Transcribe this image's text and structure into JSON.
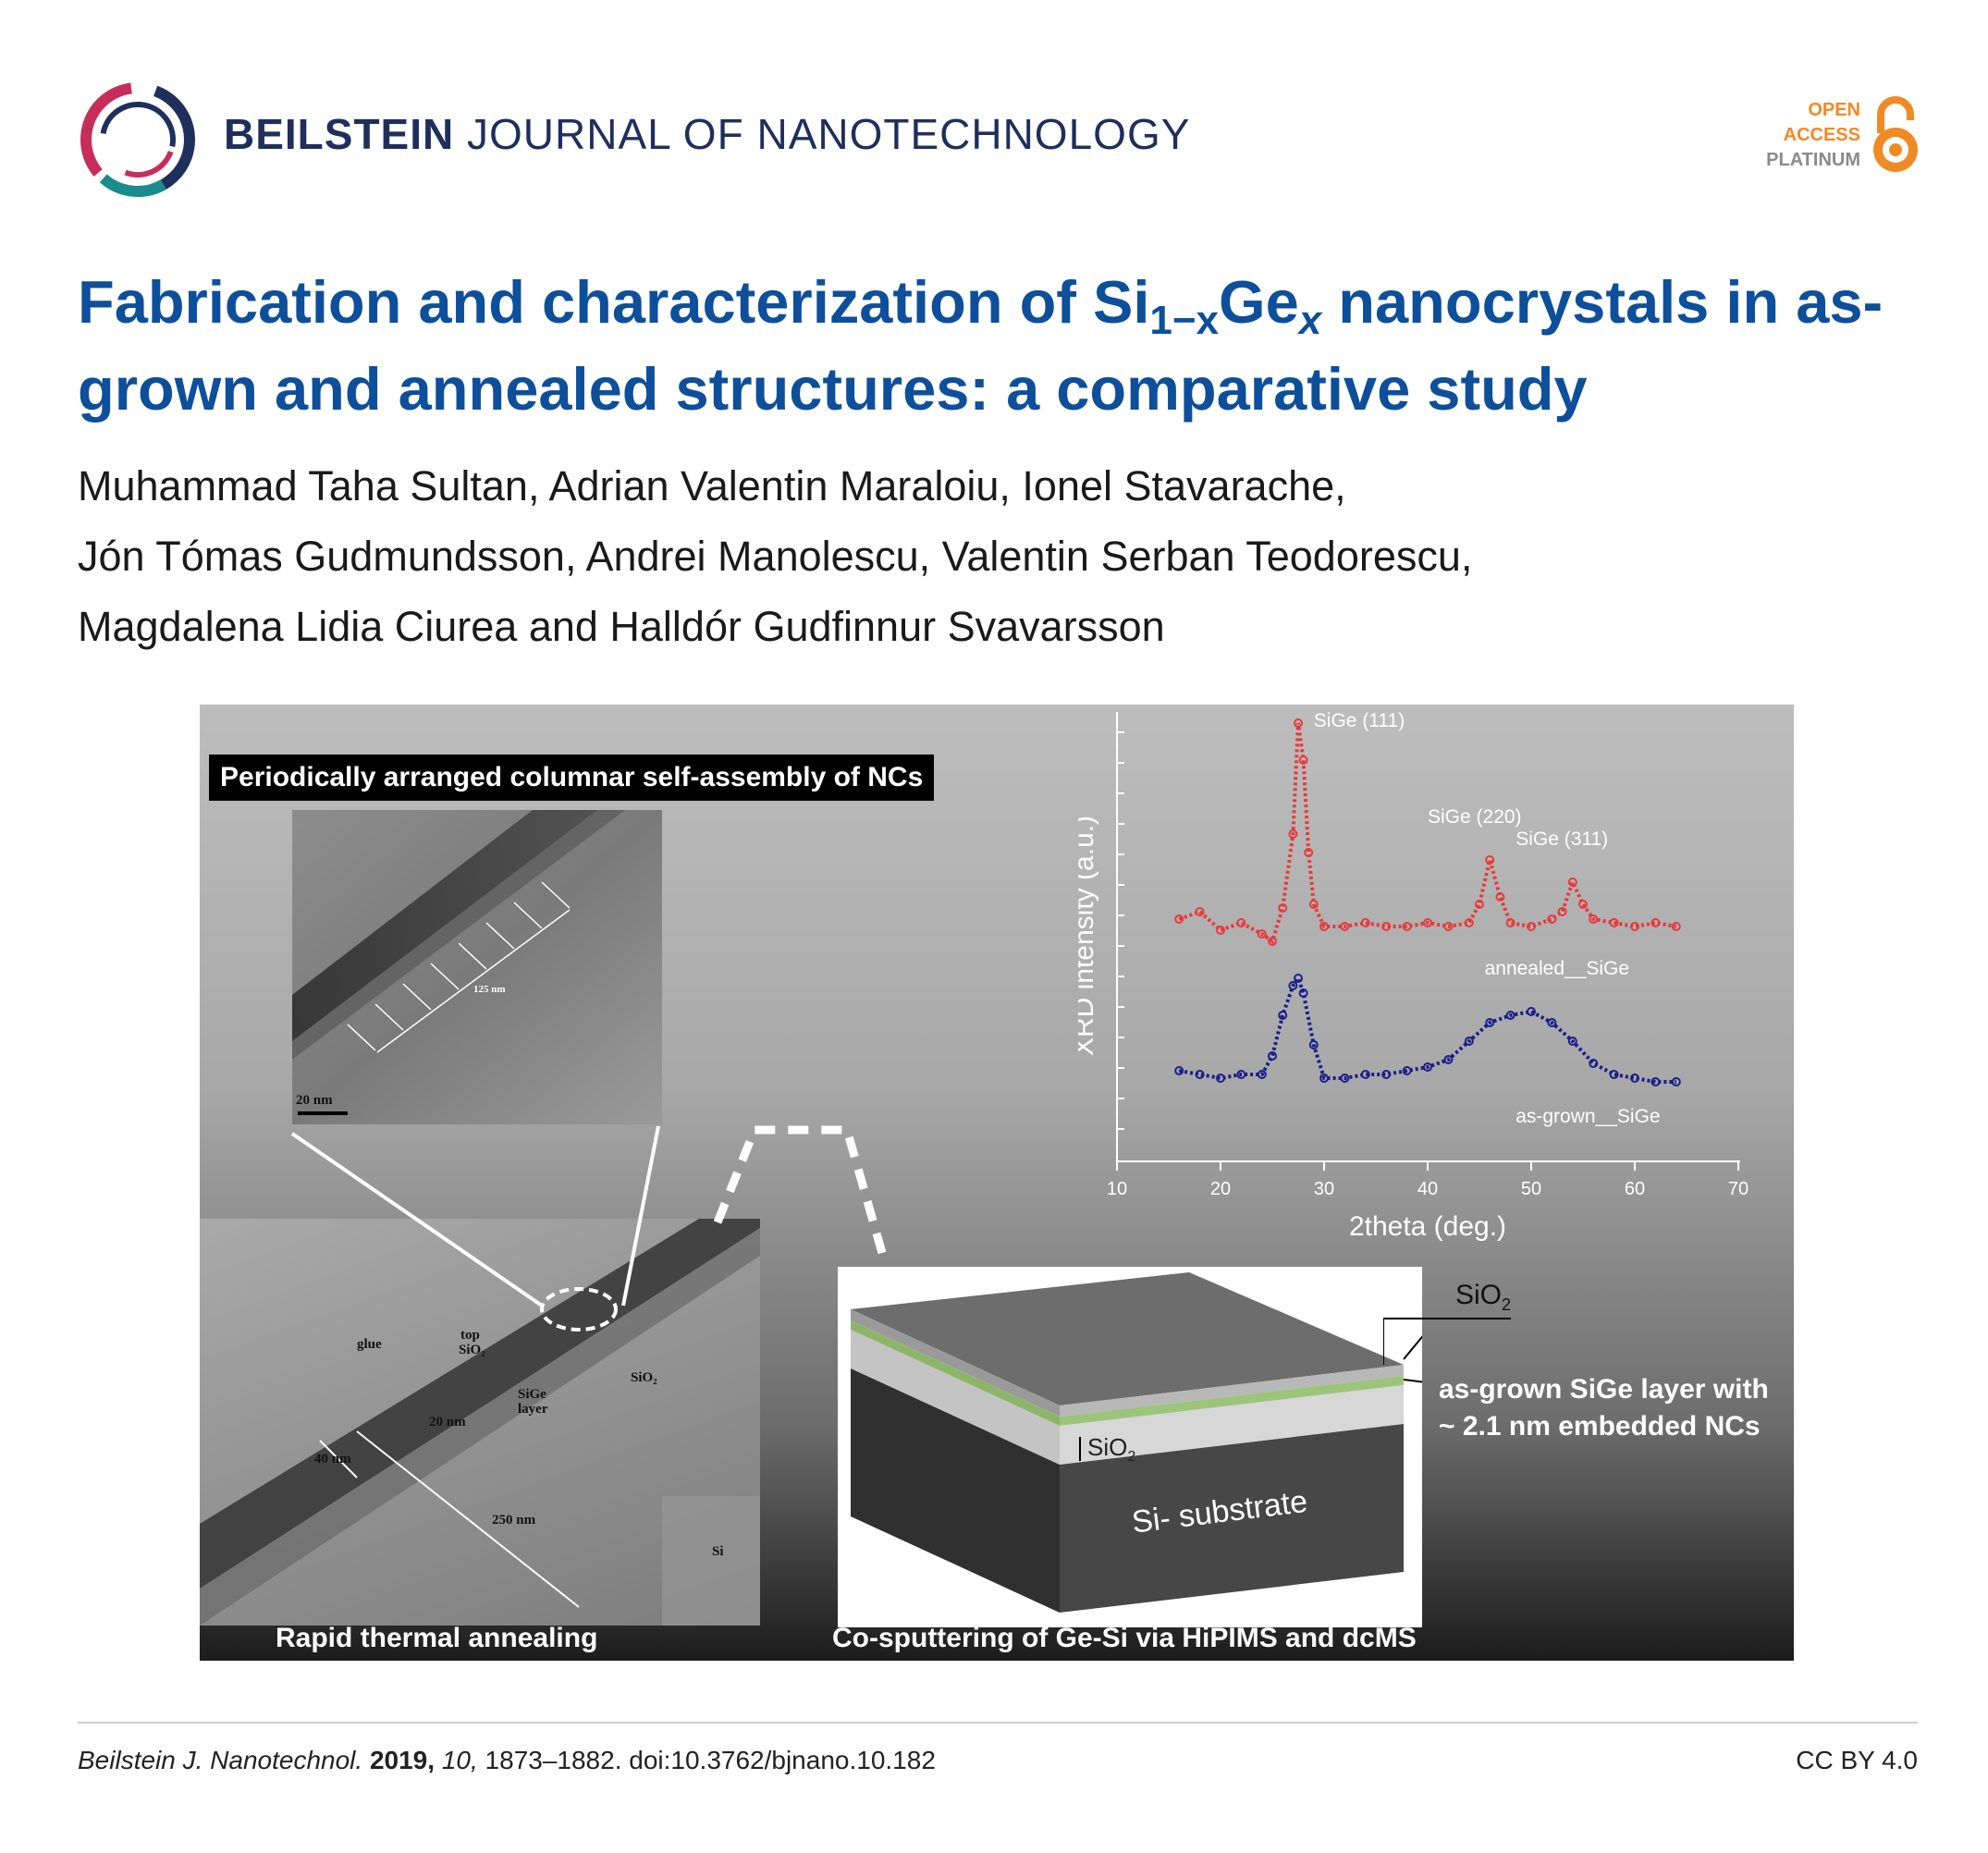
{
  "header": {
    "journal_bold": "BEILSTEIN",
    "journal_rest": "JOURNAL OF NANOTECHNOLOGY",
    "oa_line1": "OPEN",
    "oa_line2": "ACCESS",
    "oa_line3": "PLATINUM",
    "colors": {
      "brand_navy": "#1f2f5c",
      "oa_orange": "#f08a24"
    }
  },
  "article": {
    "title_part1": "Fabrication and characterization of Si",
    "title_sub1": "1−x",
    "title_part2": "Ge",
    "title_sub2": "x",
    "title_part3": " nanocrystals in as-grown and annealed structures: a comparative study",
    "authors_line1": "Muhammad Taha Sultan, Adrian Valentin Maraloiu, Ionel Stavarache,",
    "authors_line2": "Jón Tómas Gudmundsson, Andrei Manolescu, Valentin Serban Teodorescu,",
    "authors_line3": "Magdalena Lidia Ciurea and Halldór Gudfinnur Svavarsson",
    "title_color": "#0d4f9a"
  },
  "figure": {
    "label_top": "Periodically arranged columnar self-assembly of NCs",
    "label_rta": "Rapid thermal annealing",
    "label_sputter": "Co-sputtering of Ge-Si via HiPIMS and dcMS",
    "tem_top": {
      "scale_bar": "20 nm",
      "measure": "125 nm"
    },
    "tem_bottom": {
      "glue": "glue",
      "top_sio2_1": "top",
      "top_sio2_2": "SiO₂",
      "sige_layer_1": "SiGe",
      "sige_layer_2": "layer",
      "sio2": "SiO₂",
      "si": "Si",
      "d20": "20 nm",
      "d40": "40 nm",
      "d250": "250 nm"
    },
    "schematic": {
      "sio2_top": "SiO",
      "sio2_top_sub": "2",
      "sige_label_1": "as-grown SiGe layer with",
      "sige_label_2": "~ 2.1 nm embedded NCs",
      "sio2_mid": "SiO",
      "sio2_mid_sub": "2",
      "substrate": "Si- substrate"
    },
    "xrd": {
      "ylabel": "XRD intensity (a.u.)",
      "xlabel": "2theta (deg.)",
      "x_ticks": [
        "10",
        "20",
        "30",
        "40",
        "50",
        "60",
        "70"
      ],
      "peak_111": "SiGe (111)",
      "peak_220": "SiGe (220)",
      "peak_311": "SiGe (311)",
      "series_annealed": "annealed__SiGe",
      "series_asgrown": "as-grown__SiGe",
      "colors": {
        "annealed": "#e8393b",
        "asgrown": "#1a1f8a"
      }
    }
  },
  "chart_data": {
    "type": "line",
    "xlabel": "2theta (deg.)",
    "ylabel": "XRD intensity (a.u.)",
    "xlim": [
      10,
      70
    ],
    "grid": false,
    "series": [
      {
        "name": "annealed__SiGe",
        "x": [
          16,
          18,
          20,
          22,
          24,
          25,
          26,
          27,
          27.5,
          28,
          28.5,
          29,
          30,
          32,
          34,
          36,
          38,
          40,
          42,
          44,
          45,
          46,
          47,
          48,
          50,
          52,
          53,
          54,
          55,
          56,
          58,
          60,
          62,
          64
        ],
        "y": [
          6.2,
          6.4,
          5.9,
          6.1,
          5.8,
          5.6,
          6.5,
          8.5,
          11.5,
          10.5,
          8.0,
          6.6,
          6.0,
          6.0,
          6.1,
          6.0,
          6.0,
          6.1,
          6.0,
          6.1,
          6.6,
          7.8,
          6.8,
          6.1,
          6.0,
          6.2,
          6.4,
          7.2,
          6.6,
          6.2,
          6.1,
          6.0,
          6.1,
          6.0
        ]
      },
      {
        "name": "as-grown__SiGe",
        "x": [
          16,
          18,
          20,
          22,
          24,
          25,
          26,
          27,
          27.5,
          28,
          29,
          30,
          32,
          34,
          36,
          38,
          40,
          42,
          44,
          46,
          48,
          50,
          52,
          54,
          56,
          58,
          60,
          62,
          64
        ],
        "y": [
          2.1,
          2.0,
          1.9,
          2.0,
          2.0,
          2.5,
          3.6,
          4.4,
          4.6,
          4.2,
          2.8,
          1.9,
          1.9,
          2.0,
          2.0,
          2.1,
          2.2,
          2.4,
          2.9,
          3.4,
          3.6,
          3.7,
          3.4,
          2.9,
          2.3,
          2.0,
          1.9,
          1.8,
          1.8
        ]
      }
    ],
    "annotations": [
      "SiGe (111)",
      "SiGe (220)",
      "SiGe (311)"
    ]
  },
  "footer": {
    "journal_abbrev": "Beilstein J. Nanotechnol.",
    "year": "2019,",
    "volume": "10,",
    "pages_doi": "1873–1882. doi:10.3762/bjnano.10.182",
    "license": "CC BY 4.0"
  }
}
